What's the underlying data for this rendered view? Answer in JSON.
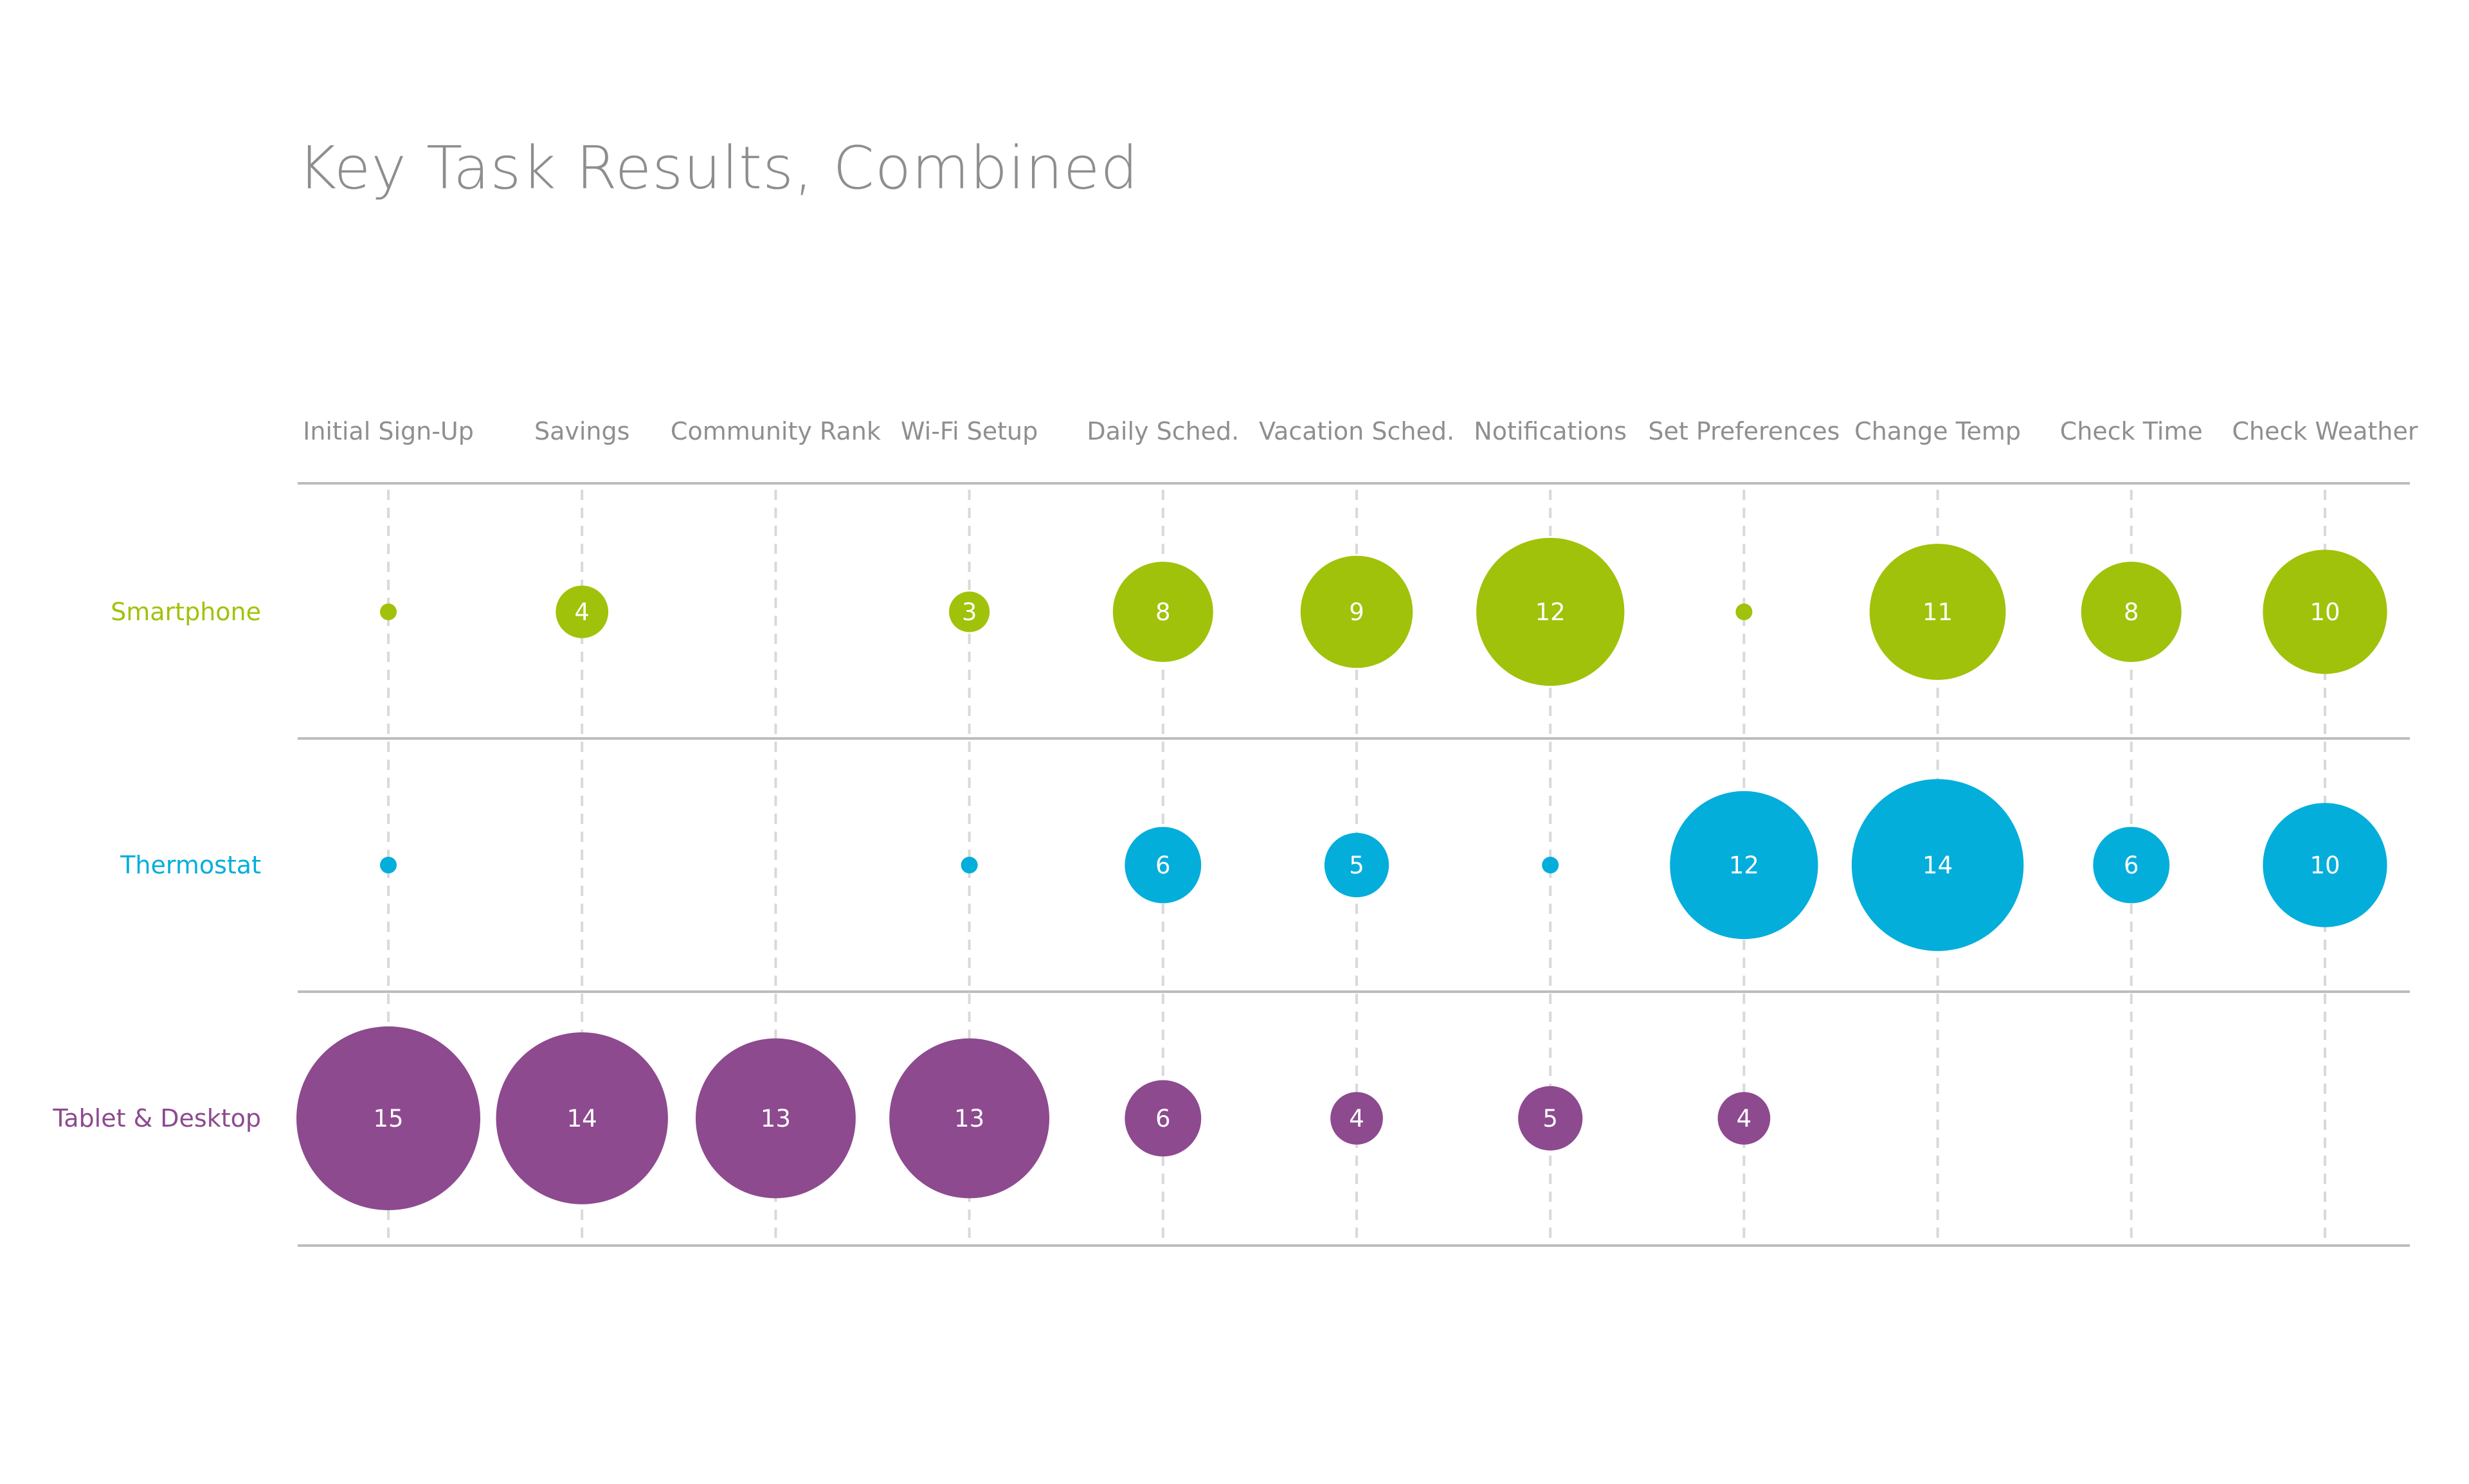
{
  "title": "Key Task Results, Combined",
  "chart_data": {
    "type": "scatter",
    "title": "Key Task Results, Combined",
    "categories": [
      "Initial Sign-Up",
      "Savings",
      "Community Rank",
      "Wi-Fi Setup",
      "Daily Sched.",
      "Vacation Sched.",
      "Notifications",
      "Set Preferences",
      "Change Temp",
      "Check Time",
      "Check Weather"
    ],
    "series": [
      {
        "name": "Smartphone",
        "color": "#a0c20a",
        "values": [
          1,
          4,
          null,
          3,
          8,
          9,
          12,
          1,
          11,
          8,
          10
        ],
        "labels": [
          "",
          "4",
          "",
          "3",
          "8",
          "9",
          "12",
          "",
          "11",
          "8",
          "10"
        ]
      },
      {
        "name": "Thermostat",
        "color": "#03aedb",
        "values": [
          1,
          null,
          null,
          1,
          6,
          5,
          1,
          12,
          14,
          6,
          10
        ],
        "labels": [
          "",
          "",
          "",
          "",
          "6",
          "5",
          "",
          "12",
          "14",
          "6",
          "10"
        ]
      },
      {
        "name": "Tablet & Desktop",
        "color": "#8d4a8f",
        "values": [
          15,
          14,
          13,
          13,
          6,
          4,
          5,
          4,
          null,
          null,
          null
        ],
        "labels": [
          "15",
          "14",
          "13",
          "13",
          "6",
          "4",
          "5",
          "4",
          "",
          "",
          ""
        ]
      }
    ],
    "grid": true,
    "legend": "none"
  }
}
